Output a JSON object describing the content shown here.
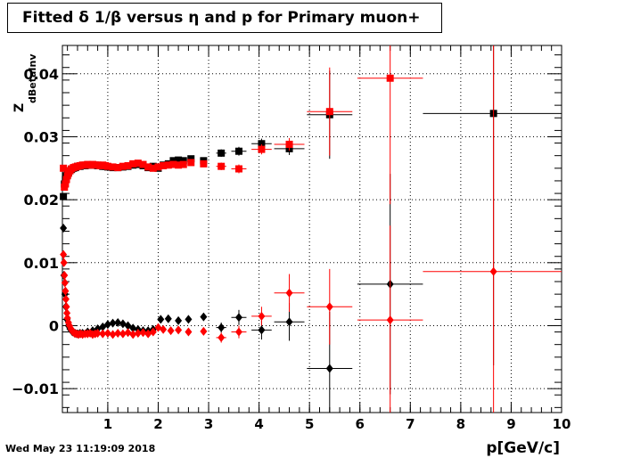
{
  "title": "Fitted δ 1/β versus η and p for Primary muon+",
  "footer_timestamp": "Wed May 23 11:19:09 2018",
  "chart_data": {
    "type": "scatter",
    "xlabel": "p[GeV/c]",
    "ylabel": "Z",
    "ylabel_subscript": "dBetaInv",
    "xlim": [
      0.1,
      10
    ],
    "ylim": [
      -0.0138,
      0.0445
    ],
    "x_ticks": [
      1,
      2,
      3,
      4,
      5,
      6,
      7,
      8,
      9,
      10
    ],
    "x_tick_labels": [
      "1",
      "2",
      "3",
      "4",
      "5",
      "6",
      "7",
      "8",
      "9",
      "10"
    ],
    "y_ticks": [
      -0.01,
      0,
      0.01,
      0.02,
      0.03,
      0.04
    ],
    "y_tick_labels": [
      "−0.01",
      "0",
      "0.01",
      "0.02",
      "0.03",
      "0.04"
    ],
    "grid": true,
    "colors": {
      "black": "#000000",
      "red": "#ff0000"
    },
    "series": [
      {
        "color": "#000000",
        "marker": "square",
        "points": [
          {
            "x": 0.12,
            "y": 0.0205
          },
          {
            "x": 0.14,
            "y": 0.0225
          },
          {
            "x": 0.16,
            "y": 0.0232
          },
          {
            "x": 0.18,
            "y": 0.0238
          },
          {
            "x": 0.2,
            "y": 0.024
          },
          {
            "x": 0.22,
            "y": 0.0243
          },
          {
            "x": 0.25,
            "y": 0.0246
          },
          {
            "x": 0.28,
            "y": 0.0248
          },
          {
            "x": 0.32,
            "y": 0.025
          },
          {
            "x": 0.36,
            "y": 0.0251
          },
          {
            "x": 0.4,
            "y": 0.0253
          },
          {
            "x": 0.45,
            "y": 0.0253
          },
          {
            "x": 0.5,
            "y": 0.0254
          },
          {
            "x": 0.55,
            "y": 0.0254
          },
          {
            "x": 0.6,
            "y": 0.0255
          },
          {
            "x": 0.65,
            "y": 0.0255
          },
          {
            "x": 0.7,
            "y": 0.0255
          },
          {
            "x": 0.75,
            "y": 0.0255
          },
          {
            "x": 0.8,
            "y": 0.0254
          },
          {
            "x": 0.85,
            "y": 0.0254
          },
          {
            "x": 0.9,
            "y": 0.0253
          },
          {
            "x": 0.95,
            "y": 0.0253
          },
          {
            "x": 1.0,
            "y": 0.0252
          },
          {
            "x": 1.1,
            "y": 0.0251
          },
          {
            "x": 1.2,
            "y": 0.0251
          },
          {
            "x": 1.3,
            "y": 0.0252
          },
          {
            "x": 1.4,
            "y": 0.0253
          },
          {
            "x": 1.5,
            "y": 0.0255
          },
          {
            "x": 1.6,
            "y": 0.0256
          },
          {
            "x": 1.7,
            "y": 0.0254
          },
          {
            "x": 1.8,
            "y": 0.0251
          },
          {
            "x": 1.9,
            "y": 0.0253
          },
          {
            "x": 2.0,
            "y": 0.025
          },
          {
            "x": 2.1,
            "y": 0.0255
          },
          {
            "x": 2.2,
            "y": 0.0257
          },
          {
            "x": 2.3,
            "y": 0.0262
          },
          {
            "x": 2.4,
            "y": 0.0263
          },
          {
            "x": 2.5,
            "y": 0.0262
          },
          {
            "x": 2.65,
            "y": 0.0265
          },
          {
            "x": 2.9,
            "y": 0.0262
          },
          {
            "x": 3.25,
            "y": 0.0274,
            "ex": 0.1,
            "ey": 0.0006
          },
          {
            "x": 3.6,
            "y": 0.0277,
            "ex": 0.15,
            "ey": 0.0007
          },
          {
            "x": 4.05,
            "y": 0.0289,
            "ex": 0.2,
            "ey": 0.0008
          },
          {
            "x": 4.6,
            "y": 0.0281,
            "ex": 0.3,
            "ey": 0.001
          },
          {
            "x": 5.4,
            "y": 0.0335,
            "ex": 0.45,
            "ey": 0.007
          },
          {
            "x": 0.12,
            "y": 0.0155
          },
          {
            "x": 0.13,
            "y": 0.008
          },
          {
            "x": 0.15,
            "y": 0.005
          },
          {
            "x": 0.17,
            "y": 0.003
          },
          {
            "x": 0.19,
            "y": 0.001
          },
          {
            "x": 0.22,
            "y": 0.0
          },
          {
            "x": 0.25,
            "y": -0.0005
          },
          {
            "x": 0.3,
            "y": -0.001
          },
          {
            "x": 0.35,
            "y": -0.0012
          },
          {
            "x": 0.4,
            "y": -0.0013
          },
          {
            "x": 0.45,
            "y": -0.0012
          },
          {
            "x": 0.5,
            "y": -0.0012
          },
          {
            "x": 0.6,
            "y": -0.001
          },
          {
            "x": 0.7,
            "y": -0.0008
          },
          {
            "x": 0.8,
            "y": -0.0005
          },
          {
            "x": 0.9,
            "y": -0.0002
          },
          {
            "x": 1.0,
            "y": 0.0002
          },
          {
            "x": 1.1,
            "y": 0.0004
          },
          {
            "x": 1.2,
            "y": 0.0005
          },
          {
            "x": 1.3,
            "y": 0.0003
          },
          {
            "x": 1.4,
            "y": 0.0
          },
          {
            "x": 1.5,
            "y": -0.0004
          },
          {
            "x": 1.6,
            "y": -0.0006
          },
          {
            "x": 1.7,
            "y": -0.0008
          },
          {
            "x": 1.8,
            "y": -0.0008
          },
          {
            "x": 1.9,
            "y": -0.0006
          },
          {
            "x": 2.05,
            "y": 0.001
          },
          {
            "x": 2.2,
            "y": 0.0011
          },
          {
            "x": 2.4,
            "y": 0.0008
          },
          {
            "x": 2.6,
            "y": 0.001
          },
          {
            "x": 2.9,
            "y": 0.0014
          },
          {
            "x": 3.25,
            "y": -0.0003,
            "ex": 0.1,
            "ey": 0.0008
          },
          {
            "x": 3.6,
            "y": 0.0013,
            "ex": 0.15,
            "ey": 0.0012
          },
          {
            "x": 4.05,
            "y": -0.0007,
            "ex": 0.2,
            "ey": 0.0015
          },
          {
            "x": 4.6,
            "y": 0.0006,
            "ex": 0.3,
            "ey": 0.003
          },
          {
            "x": 5.4,
            "y": -0.0068,
            "ex": 0.45,
            "ey": 0.009
          },
          {
            "x": 6.6,
            "y": 0.0066,
            "ex": 0.65,
            "ey": 0.0175
          },
          {
            "x": 8.65,
            "y": 0.0337,
            "ex": 1.4,
            "ey": 0.04
          }
        ]
      },
      {
        "color": "#ff0000",
        "marker": "square",
        "points": [
          {
            "x": 0.12,
            "y": 0.025
          },
          {
            "x": 0.14,
            "y": 0.022
          },
          {
            "x": 0.16,
            "y": 0.0225
          },
          {
            "x": 0.18,
            "y": 0.0232
          },
          {
            "x": 0.2,
            "y": 0.0238
          },
          {
            "x": 0.22,
            "y": 0.0242
          },
          {
            "x": 0.25,
            "y": 0.0246
          },
          {
            "x": 0.28,
            "y": 0.0249
          },
          {
            "x": 0.32,
            "y": 0.0251
          },
          {
            "x": 0.36,
            "y": 0.0252
          },
          {
            "x": 0.4,
            "y": 0.0253
          },
          {
            "x": 0.45,
            "y": 0.0254
          },
          {
            "x": 0.5,
            "y": 0.0255
          },
          {
            "x": 0.55,
            "y": 0.0255
          },
          {
            "x": 0.6,
            "y": 0.0256
          },
          {
            "x": 0.65,
            "y": 0.0255
          },
          {
            "x": 0.7,
            "y": 0.0256
          },
          {
            "x": 0.75,
            "y": 0.0255
          },
          {
            "x": 0.8,
            "y": 0.0255
          },
          {
            "x": 0.85,
            "y": 0.0254
          },
          {
            "x": 0.9,
            "y": 0.0255
          },
          {
            "x": 0.95,
            "y": 0.0254
          },
          {
            "x": 1.0,
            "y": 0.0253
          },
          {
            "x": 1.1,
            "y": 0.0252
          },
          {
            "x": 1.2,
            "y": 0.0251
          },
          {
            "x": 1.3,
            "y": 0.0253
          },
          {
            "x": 1.4,
            "y": 0.0254
          },
          {
            "x": 1.5,
            "y": 0.0257
          },
          {
            "x": 1.6,
            "y": 0.0258
          },
          {
            "x": 1.7,
            "y": 0.0256
          },
          {
            "x": 1.8,
            "y": 0.0252
          },
          {
            "x": 1.9,
            "y": 0.025
          },
          {
            "x": 2.0,
            "y": 0.0252
          },
          {
            "x": 2.1,
            "y": 0.0254
          },
          {
            "x": 2.2,
            "y": 0.0255
          },
          {
            "x": 2.3,
            "y": 0.0256
          },
          {
            "x": 2.4,
            "y": 0.0255
          },
          {
            "x": 2.5,
            "y": 0.0256
          },
          {
            "x": 2.65,
            "y": 0.0259
          },
          {
            "x": 2.9,
            "y": 0.0257
          },
          {
            "x": 3.25,
            "y": 0.0253,
            "ex": 0.1,
            "ey": 0.0006
          },
          {
            "x": 3.6,
            "y": 0.0249,
            "ex": 0.15,
            "ey": 0.0007
          },
          {
            "x": 4.05,
            "y": 0.028,
            "ex": 0.2,
            "ey": 0.0008
          },
          {
            "x": 4.6,
            "y": 0.0288,
            "ex": 0.3,
            "ey": 0.001
          },
          {
            "x": 5.4,
            "y": 0.034,
            "ex": 0.45,
            "ey": 0.007
          },
          {
            "x": 6.6,
            "y": 0.0393,
            "ex": 0.65,
            "ey": 0.02
          },
          {
            "x": 0.12,
            "y": 0.0113
          },
          {
            "x": 0.13,
            "y": 0.01
          },
          {
            "x": 0.14,
            "y": 0.008
          },
          {
            "x": 0.15,
            "y": 0.0068
          },
          {
            "x": 0.16,
            "y": 0.0055
          },
          {
            "x": 0.17,
            "y": 0.0042
          },
          {
            "x": 0.18,
            "y": 0.003
          },
          {
            "x": 0.19,
            "y": 0.002
          },
          {
            "x": 0.2,
            "y": 0.0012
          },
          {
            "x": 0.22,
            "y": 0.0005
          },
          {
            "x": 0.24,
            "y": 0.0
          },
          {
            "x": 0.27,
            "y": -0.0005
          },
          {
            "x": 0.3,
            "y": -0.0009
          },
          {
            "x": 0.34,
            "y": -0.0012
          },
          {
            "x": 0.38,
            "y": -0.0013
          },
          {
            "x": 0.42,
            "y": -0.0014
          },
          {
            "x": 0.46,
            "y": -0.0013
          },
          {
            "x": 0.5,
            "y": -0.0014
          },
          {
            "x": 0.55,
            "y": -0.0013
          },
          {
            "x": 0.6,
            "y": -0.0013
          },
          {
            "x": 0.65,
            "y": -0.0012
          },
          {
            "x": 0.7,
            "y": -0.0014
          },
          {
            "x": 0.75,
            "y": -0.0013
          },
          {
            "x": 0.8,
            "y": -0.0012
          },
          {
            "x": 0.9,
            "y": -0.0013
          },
          {
            "x": 1.0,
            "y": -0.0012
          },
          {
            "x": 1.1,
            "y": -0.0014
          },
          {
            "x": 1.2,
            "y": -0.0012
          },
          {
            "x": 1.3,
            "y": -0.0013
          },
          {
            "x": 1.4,
            "y": -0.0011
          },
          {
            "x": 1.5,
            "y": -0.0014
          },
          {
            "x": 1.6,
            "y": -0.0012
          },
          {
            "x": 1.7,
            "y": -0.0011
          },
          {
            "x": 1.8,
            "y": -0.0013
          },
          {
            "x": 1.9,
            "y": -0.001
          },
          {
            "x": 2.0,
            "y": -0.0003
          },
          {
            "x": 2.1,
            "y": -0.0006
          },
          {
            "x": 2.25,
            "y": -0.0008
          },
          {
            "x": 2.4,
            "y": -0.0007
          },
          {
            "x": 2.6,
            "y": -0.001
          },
          {
            "x": 2.9,
            "y": -0.0009
          },
          {
            "x": 3.25,
            "y": -0.0019,
            "ex": 0.1,
            "ey": 0.0008
          },
          {
            "x": 3.6,
            "y": -0.001,
            "ex": 0.15,
            "ey": 0.001
          },
          {
            "x": 4.05,
            "y": 0.0015,
            "ex": 0.2,
            "ey": 0.0015
          },
          {
            "x": 4.6,
            "y": 0.0052,
            "ex": 0.3,
            "ey": 0.003
          },
          {
            "x": 5.4,
            "y": 0.003,
            "ex": 0.45,
            "ey": 0.006
          },
          {
            "x": 6.6,
            "y": 0.0009,
            "ex": 0.65,
            "ey": 0.015
          },
          {
            "x": 8.65,
            "y": 0.0086,
            "ex": 1.4,
            "ey": 0.05
          }
        ]
      }
    ]
  }
}
